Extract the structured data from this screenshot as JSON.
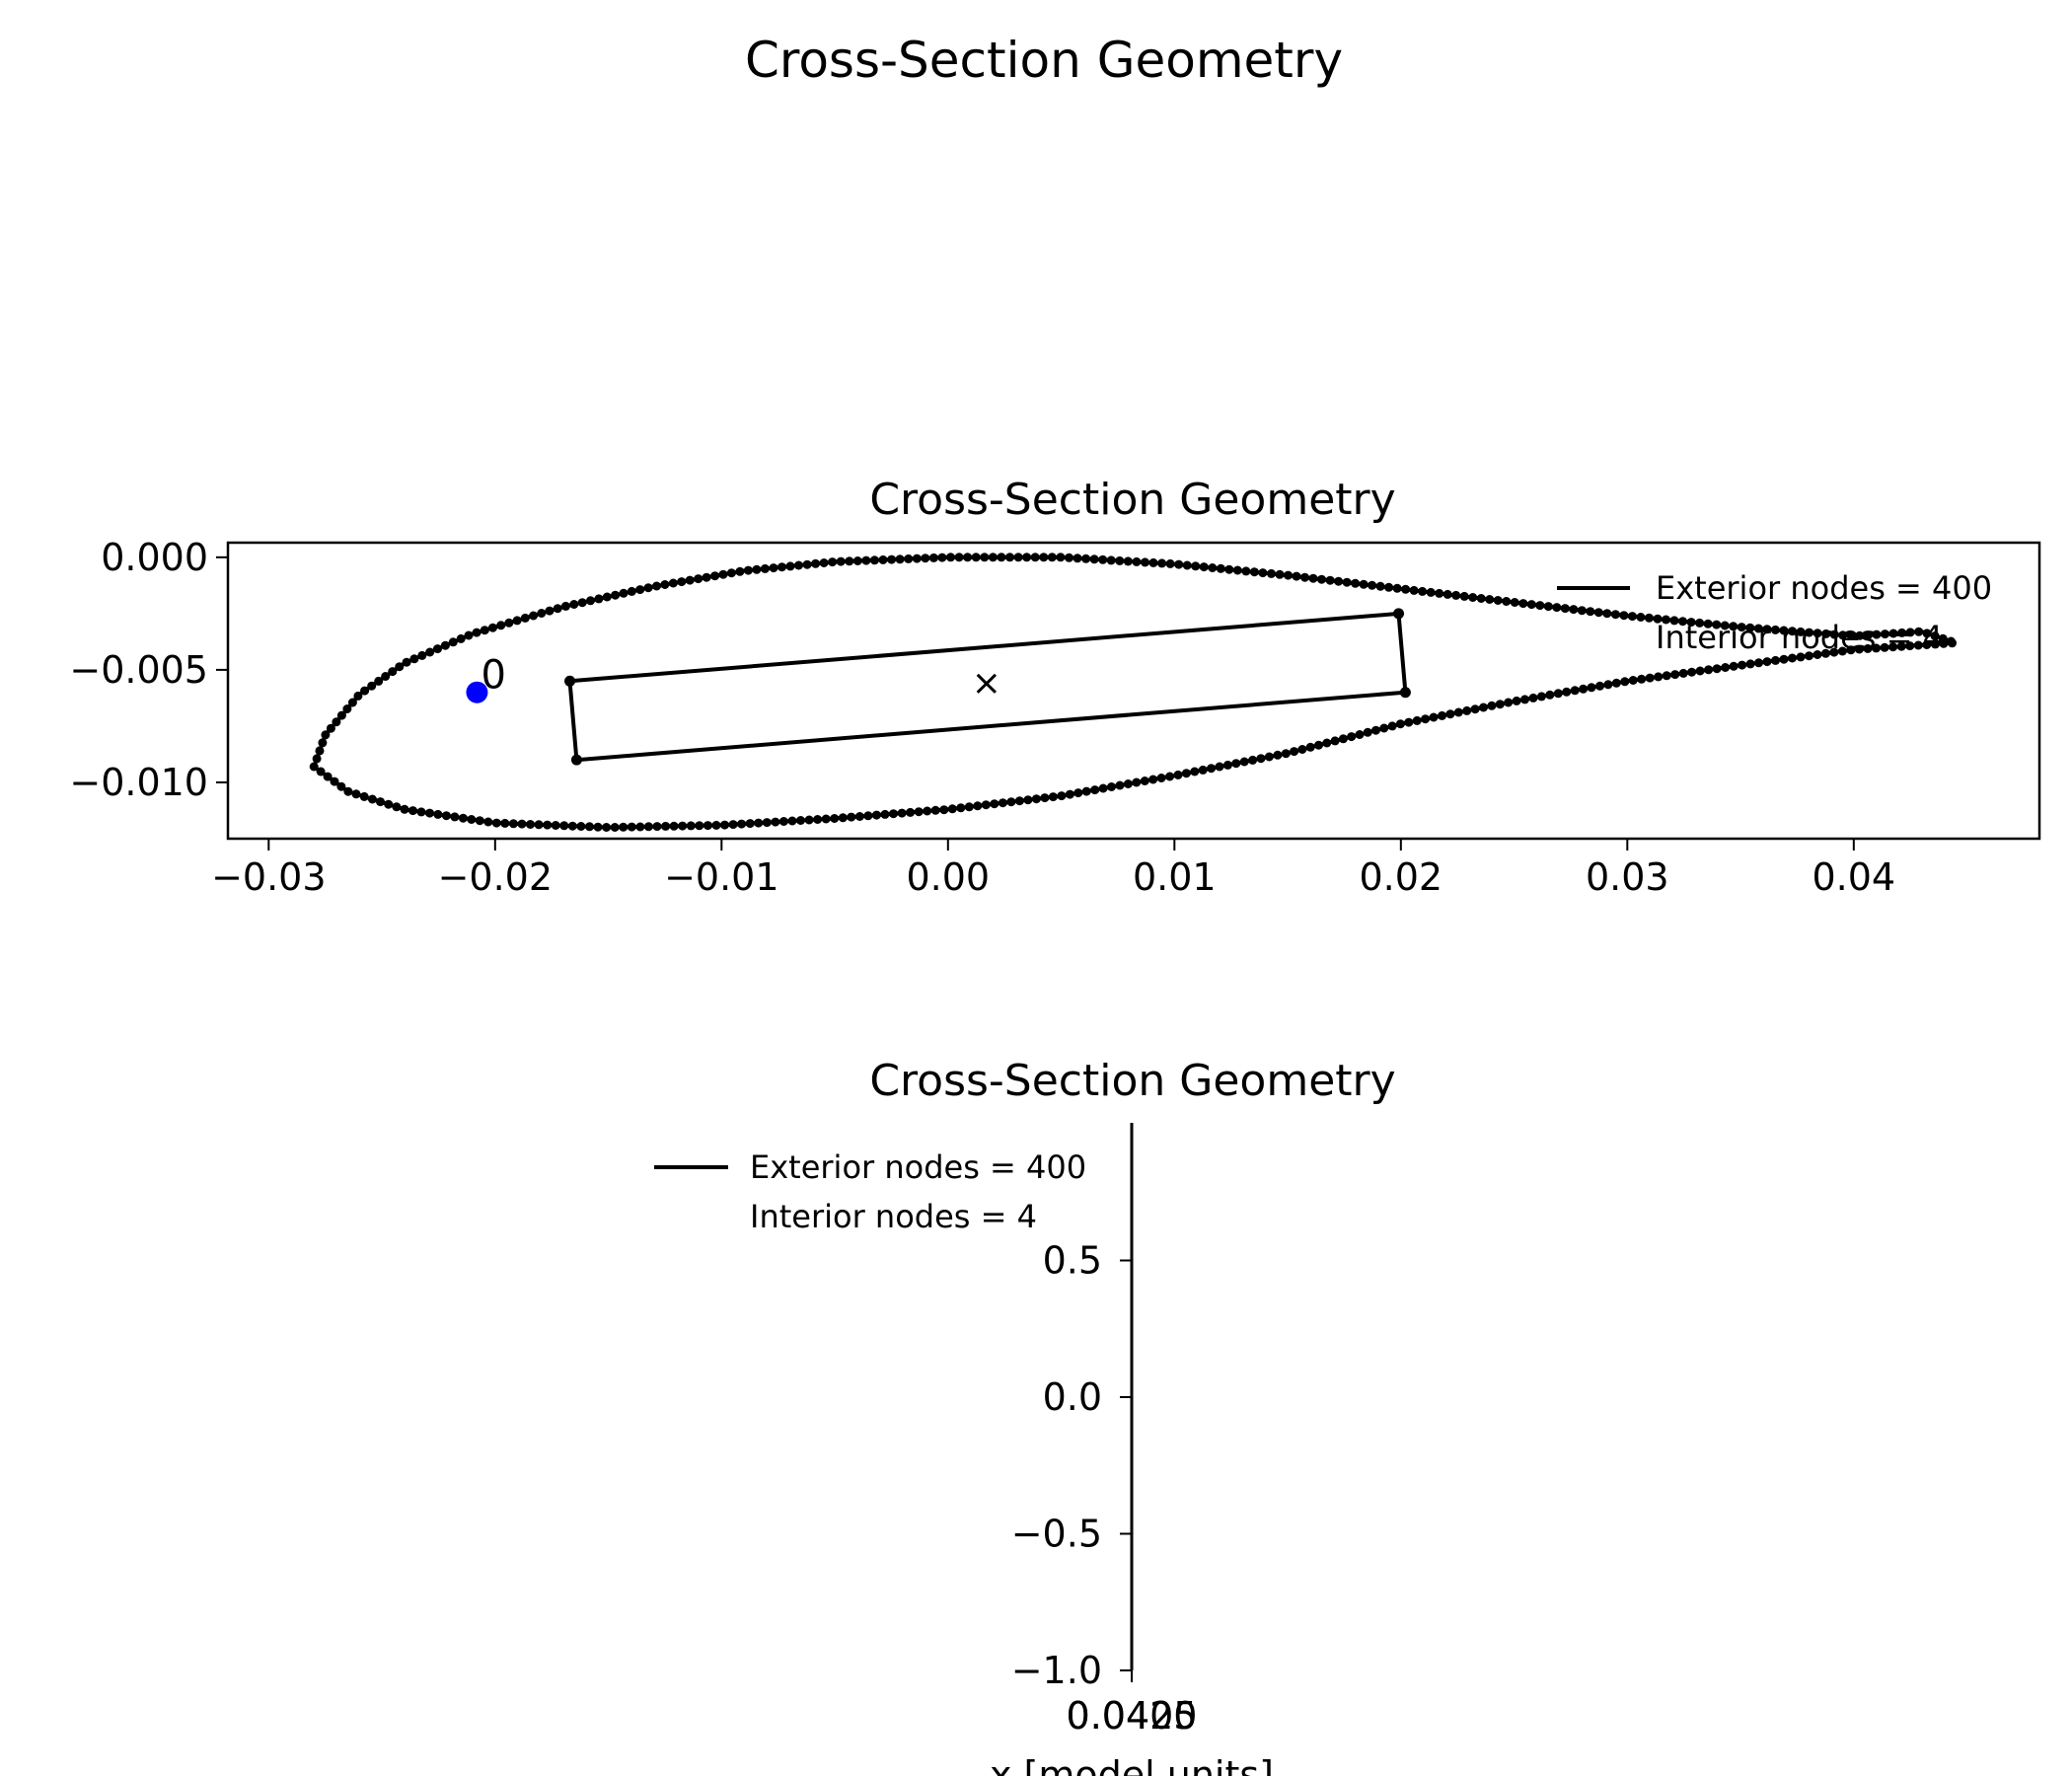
{
  "figure": {
    "suptitle": "Cross-Section Geometry"
  },
  "chart_data": [
    {
      "type": "line",
      "title": "Cross-Section Geometry",
      "xlabel": "",
      "ylabel": "",
      "xlim": [
        -0.0318,
        0.0482
      ],
      "ylim": [
        -0.0125,
        0.00065
      ],
      "x_ticks": [
        "−0.03",
        "−0.02",
        "−0.01",
        "0.00",
        "0.01",
        "0.02",
        "0.03",
        "0.04"
      ],
      "x_tick_values": [
        -0.03,
        -0.02,
        -0.01,
        0.0,
        0.01,
        0.02,
        0.03,
        0.04
      ],
      "y_ticks": [
        "0.000",
        "−0.005",
        "−0.010"
      ],
      "y_tick_values": [
        0.0,
        -0.005,
        -0.01
      ],
      "grid": false,
      "legend": {
        "placement": "upper-right",
        "entries": [
          "Exterior nodes = 400",
          "Interior nodes = 4"
        ]
      },
      "exterior": {
        "node_count": 400,
        "outline": [
          [
            -0.028,
            -0.0093
          ],
          [
            -0.0275,
            -0.0079
          ],
          [
            -0.026,
            -0.0061
          ],
          [
            -0.024,
            -0.0047
          ],
          [
            -0.021,
            -0.0034
          ],
          [
            -0.017,
            -0.0022
          ],
          [
            -0.013,
            -0.0013
          ],
          [
            -0.009,
            -0.0006
          ],
          [
            -0.005,
            -0.0002
          ],
          [
            0.0,
            0.0
          ],
          [
            0.005,
            0.0
          ],
          [
            0.01,
            -0.0003
          ],
          [
            0.015,
            -0.0008
          ],
          [
            0.02,
            -0.0014
          ],
          [
            0.025,
            -0.002
          ],
          [
            0.03,
            -0.0026
          ],
          [
            0.035,
            -0.0031
          ],
          [
            0.04,
            -0.0035
          ],
          [
            0.043,
            -0.0033
          ],
          [
            0.0445,
            -0.0038
          ],
          [
            0.043,
            -0.0039
          ],
          [
            0.04,
            -0.0041
          ],
          [
            0.035,
            -0.0048
          ],
          [
            0.03,
            -0.0055
          ],
          [
            0.025,
            -0.0064
          ],
          [
            0.02,
            -0.0074
          ],
          [
            0.015,
            -0.0087
          ],
          [
            0.01,
            -0.0097
          ],
          [
            0.005,
            -0.0106
          ],
          [
            0.0,
            -0.0112
          ],
          [
            -0.005,
            -0.0116
          ],
          [
            -0.01,
            -0.0119
          ],
          [
            -0.015,
            -0.012
          ],
          [
            -0.02,
            -0.0118
          ],
          [
            -0.024,
            -0.0112
          ],
          [
            -0.0265,
            -0.0104
          ],
          [
            -0.028,
            -0.0093
          ]
        ]
      },
      "interior": {
        "node_count": 4,
        "nodes": [
          [
            -0.0167,
            -0.0055
          ],
          [
            0.0199,
            -0.0025
          ],
          [
            0.0202,
            -0.006
          ],
          [
            -0.0164,
            -0.009
          ]
        ]
      },
      "origin_node": {
        "x": -0.0208,
        "y": -0.006,
        "label": "0",
        "color": "#0000ff"
      },
      "centroid": {
        "x": 0.0017,
        "y": -0.0056,
        "marker": "×",
        "color": "#ff0000"
      }
    },
    {
      "type": "line",
      "title": "Cross-Section Geometry",
      "xlabel": "x [model units]",
      "ylabel": "",
      "ylim": [
        -1.0,
        1.0
      ],
      "x_tick_overlap_labels": [
        "0.0400",
        "0.0425"
      ],
      "y_ticks": [
        "0.5",
        "0.0",
        "−0.5",
        "−1.0"
      ],
      "y_tick_values": [
        0.5,
        0.0,
        -0.5,
        -1.0
      ],
      "grid": false,
      "legend": {
        "placement": "upper-left",
        "entries": [
          "Exterior nodes = 400",
          "Interior nodes = 4"
        ]
      }
    }
  ]
}
